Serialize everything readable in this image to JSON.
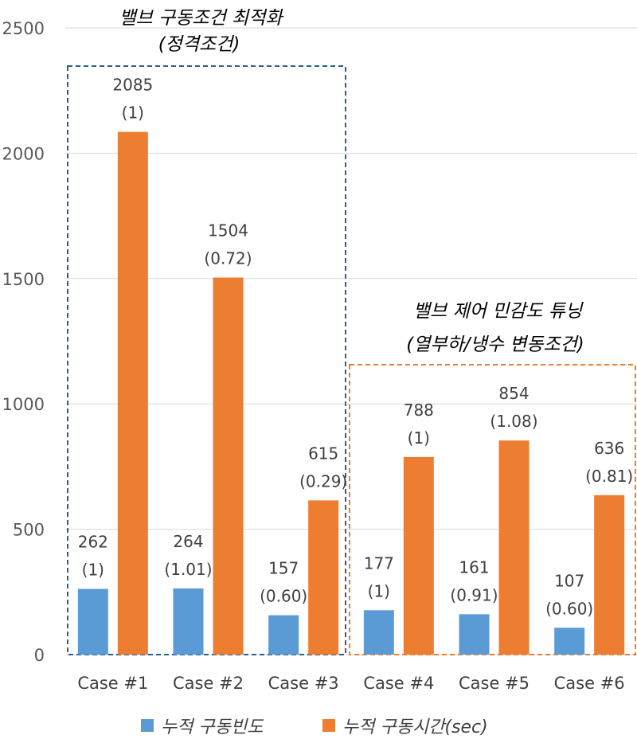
{
  "chart_data": {
    "type": "bar",
    "categories": [
      "Case #1",
      "Case #2",
      "Case #3",
      "Case #4",
      "Case #5",
      "Case #6"
    ],
    "series": [
      {
        "name": "누적 구동빈도",
        "color": "#5b9bd5",
        "values": [
          262,
          264,
          157,
          177,
          161,
          107
        ],
        "ratio_labels": [
          "(1)",
          "(1.01)",
          "(0.60)",
          "(1)",
          "(0.91)",
          "(0.60)"
        ]
      },
      {
        "name": "누적 구동시간(sec)",
        "color": "#ed7d31",
        "values": [
          2085,
          1504,
          615,
          788,
          854,
          636
        ],
        "ratio_labels": [
          "(1)",
          "(0.72)",
          "(0.29)",
          "(1)",
          "(1.08)",
          "(0.81)"
        ]
      }
    ],
    "ylim": [
      0,
      2500
    ],
    "yticks": [
      0,
      500,
      1000,
      1500,
      2000,
      2500
    ],
    "grid": true,
    "legend_position": "bottom",
    "annotations": [
      {
        "line1": "밸브 구동조건 최적화",
        "line2": "(정격조건)",
        "box_color": "#2e5f8a",
        "group": [
          "Case #1",
          "Case #2",
          "Case #3"
        ]
      },
      {
        "line1": "밸브 제어 민감도 튜닝",
        "line2": "(열부하/냉수 변동조건)",
        "box_color": "#ed7d31",
        "group": [
          "Case #4",
          "Case #5",
          "Case #6"
        ]
      }
    ]
  }
}
